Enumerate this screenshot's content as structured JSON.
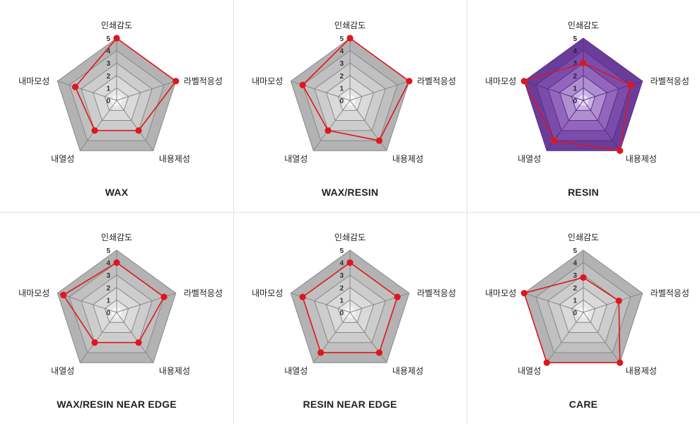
{
  "chart_data": [
    {
      "type": "radar",
      "title": "WAX",
      "axes": [
        "인쇄감도",
        "라벨적응성",
        "내용제성",
        "내열성",
        "내마모성"
      ],
      "rlim": [
        0,
        5
      ],
      "ticks": [
        "0",
        "1",
        "2",
        "3",
        "4",
        "5"
      ],
      "values": [
        5,
        5,
        3,
        3,
        3.5
      ],
      "theme": "gray"
    },
    {
      "type": "radar",
      "title": "WAX/RESIN",
      "axes": [
        "인쇄감도",
        "라벨적응성",
        "내용제성",
        "내열성",
        "내마모성"
      ],
      "rlim": [
        0,
        5
      ],
      "ticks": [
        "0",
        "1",
        "2",
        "3",
        "4",
        "5"
      ],
      "values": [
        5,
        5,
        4,
        3,
        4
      ],
      "theme": "gray"
    },
    {
      "type": "radar",
      "title": "RESIN",
      "axes": [
        "인쇄감도",
        "라벨적응성",
        "내용제성",
        "내열성",
        "내마모성"
      ],
      "rlim": [
        0,
        5
      ],
      "ticks": [
        "0",
        "1",
        "2",
        "3",
        "4",
        "5"
      ],
      "values": [
        3,
        4,
        5,
        4,
        5
      ],
      "theme": "purple"
    },
    {
      "type": "radar",
      "title": "WAX/RESIN NEAR EDGE",
      "axes": [
        "인쇄감도",
        "라벨적응성",
        "내용제성",
        "내열성",
        "내마모성"
      ],
      "rlim": [
        0,
        5
      ],
      "ticks": [
        "0",
        "1",
        "2",
        "3",
        "4",
        "5"
      ],
      "values": [
        4,
        4,
        3,
        3,
        4.5
      ],
      "theme": "gray"
    },
    {
      "type": "radar",
      "title": "RESIN NEAR EDGE",
      "axes": [
        "인쇄감도",
        "라벨적응성",
        "내용제성",
        "내열성",
        "내마모성"
      ],
      "rlim": [
        0,
        5
      ],
      "ticks": [
        "0",
        "1",
        "2",
        "3",
        "4",
        "5"
      ],
      "values": [
        4,
        4,
        4,
        4,
        4
      ],
      "theme": "gray"
    },
    {
      "type": "radar",
      "title": "CARE",
      "axes": [
        "인쇄감도",
        "라벨적응성",
        "내용제성",
        "내열성",
        "내마모성"
      ],
      "rlim": [
        0,
        5
      ],
      "ticks": [
        "0",
        "1",
        "2",
        "3",
        "4",
        "5"
      ],
      "values": [
        2.8,
        3,
        5,
        5,
        5
      ],
      "theme": "gray"
    }
  ],
  "colors": {
    "series_line": "#e0161e",
    "gray_levels": [
      "#b3b3b3",
      "#c0c0c0",
      "#cdcdcd",
      "#dadada",
      "#e7e7e7"
    ],
    "purple_levels": [
      "#6b3d9a",
      "#7b4caa",
      "#9266bd",
      "#b08fd1",
      "#cdb6e5"
    ],
    "grid_line_gray": "#888888",
    "grid_line_purple": "#5a2e88",
    "divider": "#e3e3e3"
  }
}
